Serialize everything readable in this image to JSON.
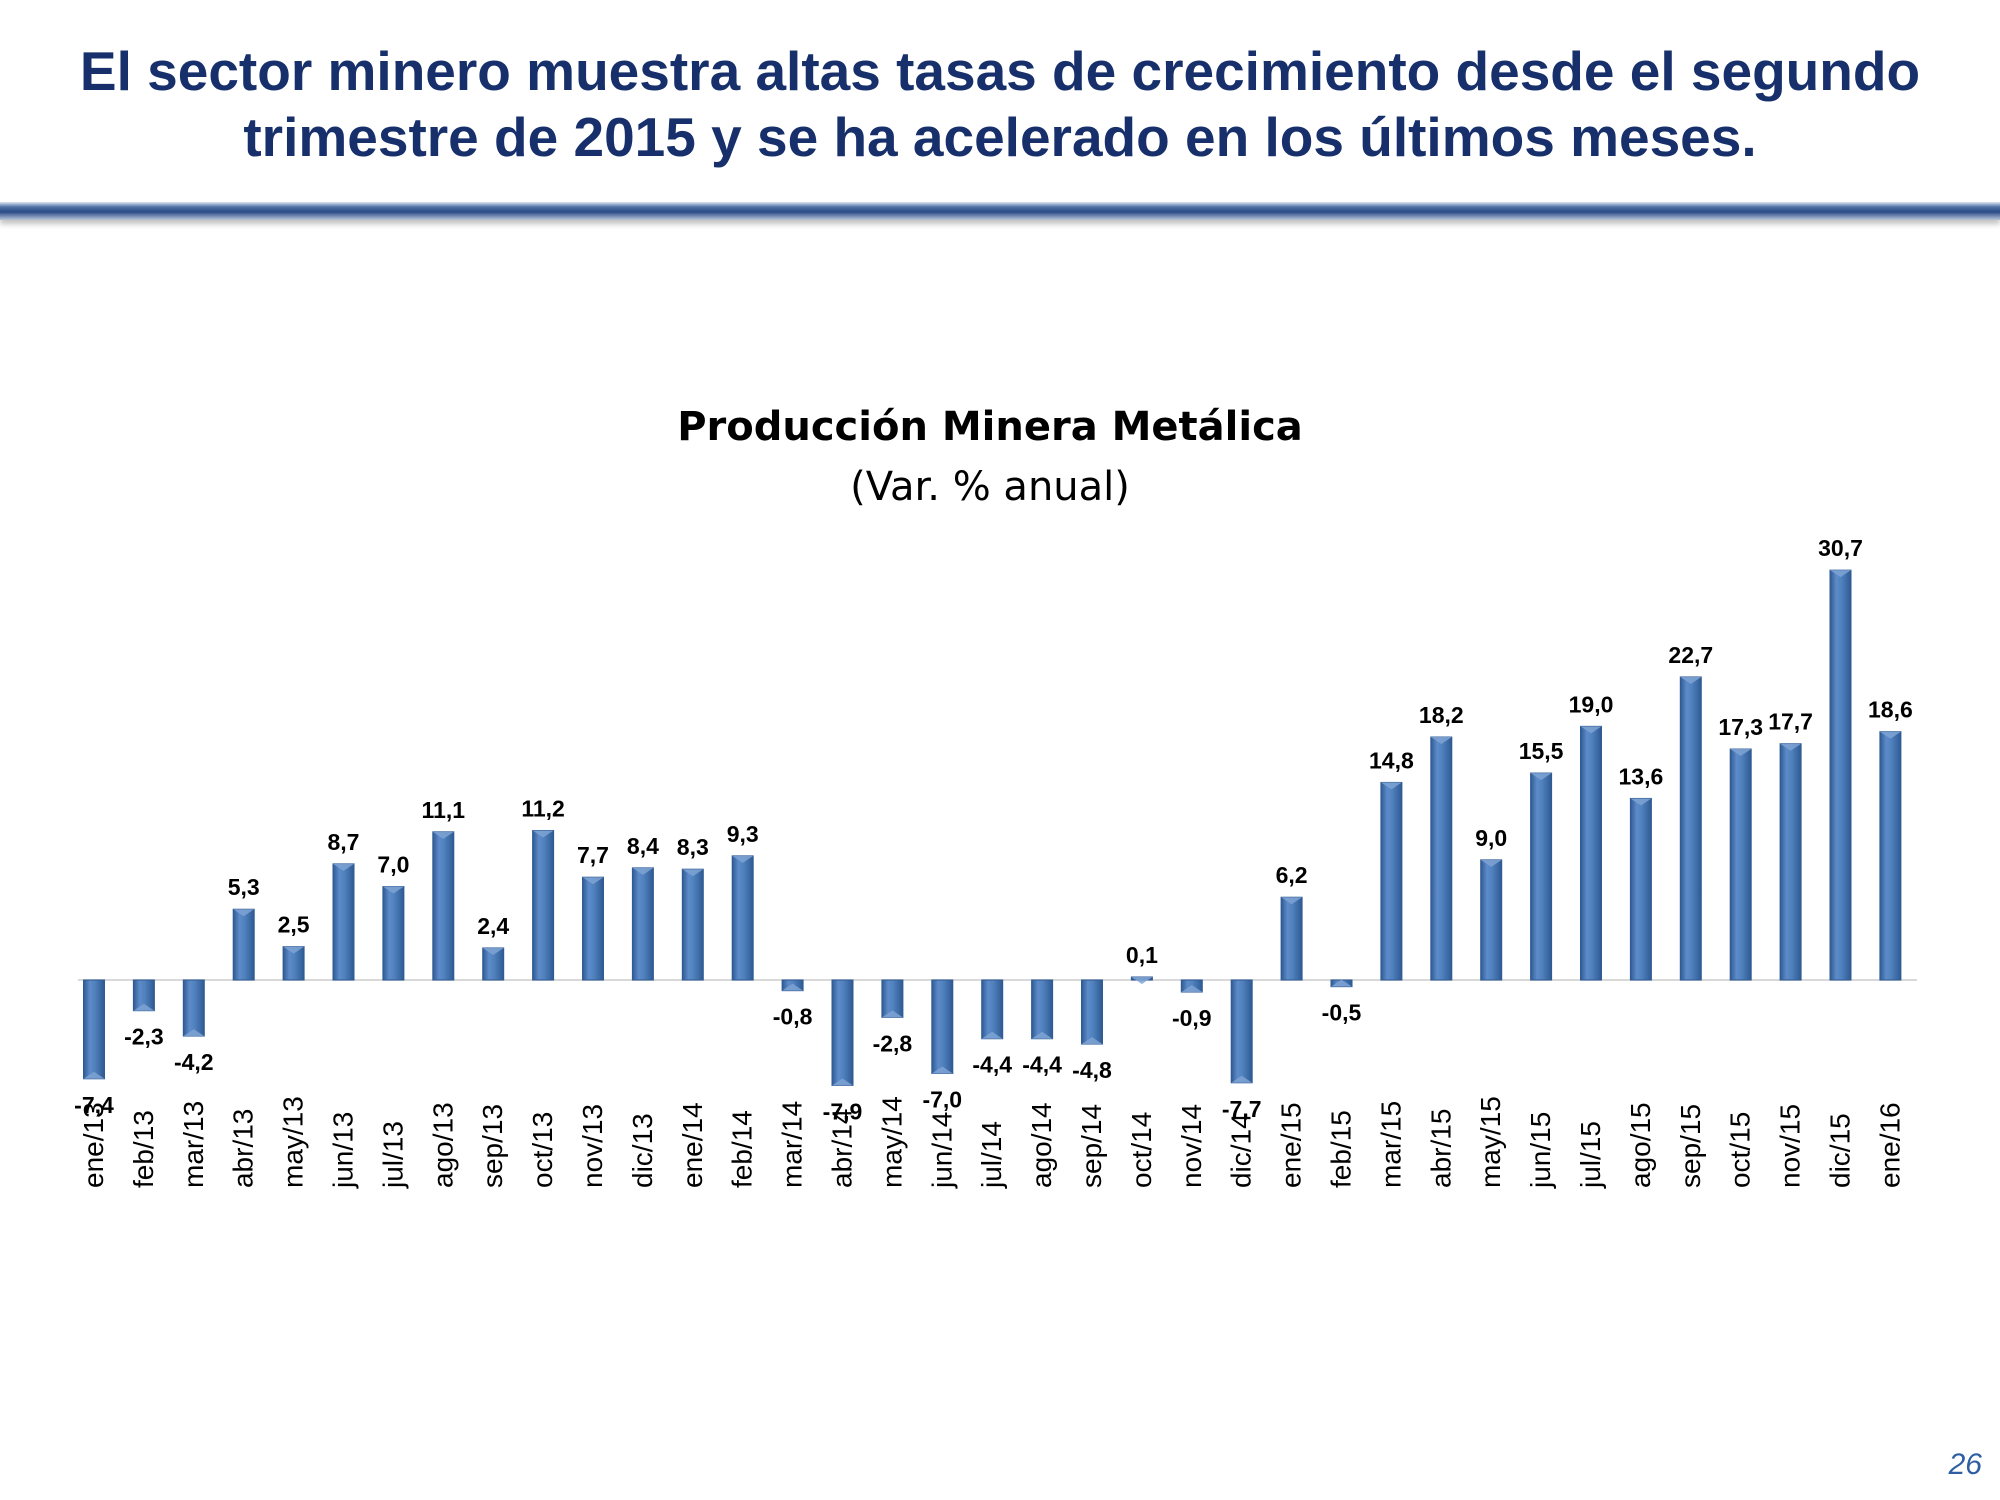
{
  "slide": {
    "headline": "El sector minero muestra altas tasas de crecimiento desde el segundo trimestre de 2015 y se ha acelerado en los últimos meses.",
    "page_number": "26"
  },
  "colors": {
    "headline": "#17306b",
    "bar": "#4f81bd",
    "bar_dark": "#2f5a93",
    "bar_light": "#7fa3d3",
    "rule": "#2a4a86",
    "page_number": "#2e5fa3"
  },
  "chart_data": {
    "type": "bar",
    "title": "Producción Minera Metálica",
    "subtitle": "(Var. % anual)",
    "xlabel": "",
    "ylabel": "",
    "ylim": [
      -8,
      31
    ],
    "grid": false,
    "legend": "none",
    "categories": [
      "ene/13",
      "feb/13",
      "mar/13",
      "abr/13",
      "may/13",
      "jun/13",
      "jul/13",
      "ago/13",
      "sep/13",
      "oct/13",
      "nov/13",
      "dic/13",
      "ene/14",
      "feb/14",
      "mar/14",
      "abr/14",
      "may/14",
      "jun/14",
      "jul/14",
      "ago/14",
      "sep/14",
      "oct/14",
      "nov/14",
      "dic/14",
      "ene/15",
      "feb/15",
      "mar/15",
      "abr/15",
      "may/15",
      "jun/15",
      "jul/15",
      "ago/15",
      "sep/15",
      "oct/15",
      "nov/15",
      "dic/15",
      "ene/16"
    ],
    "values": [
      -7.4,
      -2.3,
      -4.2,
      5.3,
      2.5,
      8.7,
      7.0,
      11.1,
      2.4,
      11.2,
      7.7,
      8.4,
      8.3,
      9.3,
      -0.8,
      -7.9,
      -2.8,
      -7.0,
      -4.4,
      -4.4,
      -4.8,
      0.1,
      -0.9,
      -7.7,
      6.2,
      -0.5,
      14.8,
      18.2,
      9.0,
      15.5,
      19.0,
      13.6,
      22.7,
      17.3,
      17.7,
      30.7,
      18.6
    ],
    "labels": [
      "-7,4",
      "-2,3",
      "-4,2",
      "5,3",
      "2,5",
      "8,7",
      "7,0",
      "11,1",
      "2,4",
      "11,2",
      "7,7",
      "8,4",
      "8,3",
      "9,3",
      "-0,8",
      "-7,9",
      "-2,8",
      "-7,0",
      "-4,4",
      "-4,4",
      "-4,8",
      "0,1",
      "-0,9",
      "-7,7",
      "6,2",
      "-0,5",
      "14,8",
      "18,2",
      "9,0",
      "15,5",
      "19,0",
      "13,6",
      "22,7",
      "17,3",
      "17,7",
      "30,7",
      "18,6"
    ]
  }
}
